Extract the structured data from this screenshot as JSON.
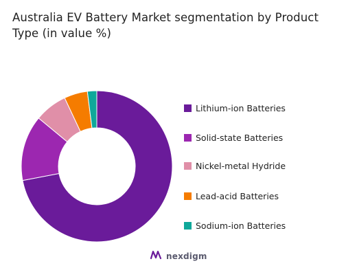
{
  "chart_data": {
    "type": "pie",
    "title": "Australia EV Battery Market segmentation by Product Type (in value %)",
    "categories": [
      "Lithium-ion Batteries",
      "Solid-state Batteries",
      "Nickel-metal Hydride",
      "Lead-acid Batteries",
      "Sodium-ion Batteries"
    ],
    "values": [
      72,
      14,
      7,
      5,
      2
    ],
    "colors": [
      "#6a1b9a",
      "#9c27b0",
      "#e08fa8",
      "#f57c00",
      "#0fa89a"
    ],
    "legend_position": "right",
    "donut": true
  },
  "brand": {
    "name": "nexdigm",
    "icon": "nexdigm-logo-icon"
  }
}
